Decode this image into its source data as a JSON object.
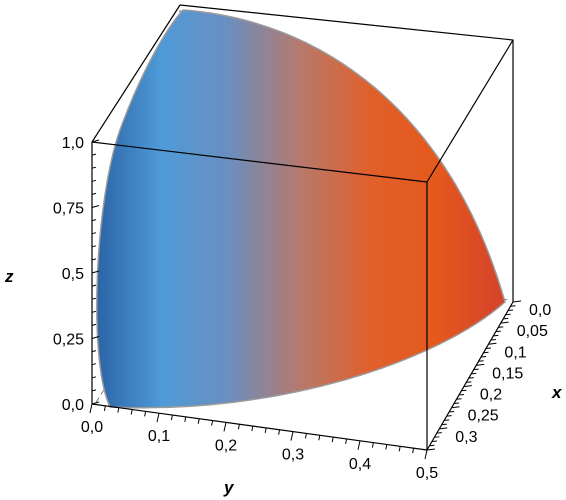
{
  "chart_data": {
    "type": "surface3d",
    "surface": "quarter of the solid x^2 + y^2 + z^2 <= 0.25 in the first octant (x>=0, y>=0, z>=0), radius 0.5",
    "title": "",
    "xlabel": "x",
    "ylabel": "y",
    "zlabel": "z",
    "xlim": [
      0,
      0.35
    ],
    "ylim": [
      0,
      0.5
    ],
    "zlim": [
      0,
      1.0
    ],
    "x_ticks": [
      "0,0",
      "0,05",
      "0,1",
      "0,15",
      "0,2",
      "0,25",
      "0,3"
    ],
    "y_ticks": [
      "0,0",
      "0,1",
      "0,2",
      "0,3",
      "0,4",
      "0,5"
    ],
    "z_ticks": [
      "0,0",
      "0,25",
      "0,5",
      "0,75",
      "1,0"
    ],
    "colormap": [
      "#2f6fb0",
      "#4f9ad8",
      "#c08070",
      "#e85a1e",
      "#e2571c",
      "#d8402a"
    ],
    "box": true,
    "grid": false
  }
}
